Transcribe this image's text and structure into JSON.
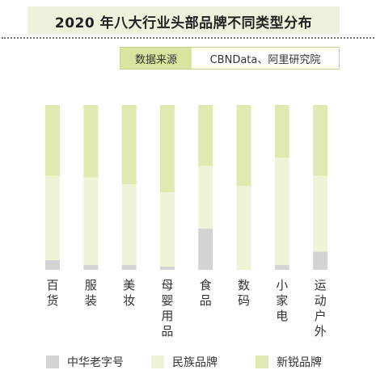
{
  "header": {
    "title": "2020 年八大行业头部品牌不同类型分布",
    "source_label": "数据来源",
    "source_value": "CBNData、阿里研究院"
  },
  "colors": {
    "中华老字号": "#d4d4d4",
    "民族品牌": "#eef4d6",
    "新锐品牌": "#deeaaf",
    "title_bg": "#edf2dd",
    "source_label_bg": "#d7e59f"
  },
  "chart_data": {
    "type": "bar",
    "stacked": true,
    "orientation": "vertical",
    "categories": [
      "百货",
      "服装",
      "美妆",
      "母婴用品",
      "食品",
      "数码",
      "小家电",
      "运动户外"
    ],
    "series": [
      {
        "name": "中华老字号",
        "values": [
          6,
          3,
          3,
          2,
          25,
          0,
          3,
          11
        ]
      },
      {
        "name": "民族品牌",
        "values": [
          51,
          53,
          49,
          45,
          38,
          51,
          65,
          46
        ]
      },
      {
        "name": "新锐品牌",
        "values": [
          43,
          44,
          48,
          53,
          37,
          49,
          32,
          43
        ]
      }
    ],
    "ylim": [
      0,
      100
    ],
    "unit": "%",
    "grid": false,
    "legend_position": "bottom"
  }
}
